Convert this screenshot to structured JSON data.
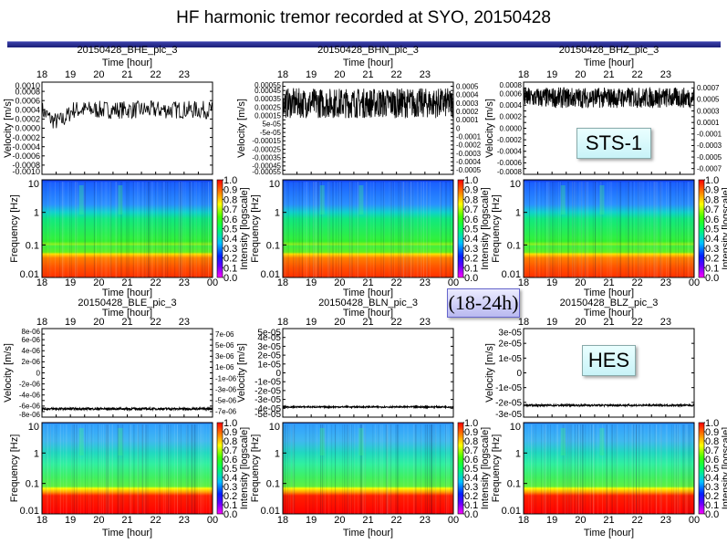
{
  "title": "HF harmonic tremor recorded at SYO, 20150428",
  "annotations": {
    "sts": "STS-1",
    "hes": "HES",
    "range": "(18-24h)"
  },
  "colors": {
    "bar": "#23278a",
    "trace": "#000000"
  },
  "chart_data": [
    {
      "type": "line+heatmap",
      "title": "20150428_BHE_pic_3",
      "xlabel": "Time [hour]",
      "ylabel": "Velocity [m/s]",
      "xticks_top": [
        "18",
        "19",
        "20",
        "21",
        "22",
        "23"
      ],
      "xticks_bottom": [
        "18",
        "19",
        "20",
        "21",
        "22",
        "23",
        "00"
      ],
      "yticks": [
        "0.0010",
        "0.0008",
        "0.0006",
        "0.0004",
        "0.0002",
        "0.0000",
        "-0.0002",
        "-0.0004",
        "-0.0006",
        "-0.0008",
        "-0.0010"
      ],
      "ylim": [
        -0.001,
        0.001
      ],
      "trace_mean": 0.0004,
      "trace_spread": 0.00015,
      "spec_ylabel": "Frequency [Hz]",
      "spec_yticks": [
        "10",
        "1",
        "0.1",
        "0.01"
      ],
      "cbar_label": "Intensity [logscale]",
      "cbar_ticks": [
        "1.0",
        "0.9",
        "0.8",
        "0.7",
        "0.6",
        "0.5",
        "0.4",
        "0.3",
        "0.2",
        "0.1",
        "0.0"
      ]
    },
    {
      "type": "line+heatmap",
      "title": "20150428_BHN_pic_3",
      "xlabel": "Time [hour]",
      "ylabel": "Velocity [m/s]",
      "xticks_top": [
        "18",
        "19",
        "20",
        "21",
        "22",
        "23"
      ],
      "xticks_bottom": [
        "18",
        "19",
        "20",
        "21",
        "22",
        "23",
        "00"
      ],
      "yticks": [
        "0.00055",
        "0.0005",
        "0.00045",
        "0.0004",
        "0.00035",
        "0.0003",
        "0.00025",
        "0.0002",
        "0.00015",
        "0.0001",
        "5e-05",
        "0",
        "-5e-05",
        "-0.0001",
        "-0.00015",
        "-0.0002",
        "-0.00025",
        "-0.0003",
        "-0.00035",
        "-0.0004",
        "-0.00045",
        "-0.0005",
        "-0.00055"
      ],
      "ylim": [
        -0.00055,
        0.00055
      ],
      "trace_mean": 0.0003,
      "trace_spread": 9e-05,
      "spec_ylabel": "Frequency [Hz]",
      "spec_yticks": [
        "10",
        "1",
        "0.1",
        "0.01"
      ],
      "cbar_label": "Intensity [logscale]",
      "cbar_ticks": [
        "1.0",
        "0.9",
        "0.8",
        "0.7",
        "0.6",
        "0.5",
        "0.4",
        "0.3",
        "0.2",
        "0.1",
        "0.0"
      ]
    },
    {
      "type": "line+heatmap",
      "title": "20150428_BHZ_pic_3",
      "xlabel": "Time [hour]",
      "ylabel": "Velocity [m/s]",
      "xticks_top": [
        "18",
        "19",
        "20",
        "21",
        "22",
        "23"
      ],
      "xticks_bottom": [
        "18",
        "19",
        "20",
        "21",
        "22",
        "23",
        "00"
      ],
      "yticks": [
        "0.0008",
        "0.0007",
        "0.0006",
        "0.0005",
        "0.0004",
        "0.0003",
        "0.0002",
        "0.0001",
        "0.0000",
        "-0.0001",
        "-0.0002",
        "-0.0003",
        "-0.0004",
        "-0.0005",
        "-0.0006",
        "-0.0007",
        "-0.0008"
      ],
      "ylim": [
        -0.0008,
        0.0008
      ],
      "trace_mean": 0.00053,
      "trace_spread": 9e-05,
      "spec_ylabel": "Frequency [Hz]",
      "spec_yticks": [
        "10",
        "1",
        "0.1",
        "0.01"
      ],
      "cbar_label": "Intensity [logscale]",
      "cbar_ticks": [
        "1.0",
        "0.9",
        "0.8",
        "0.7",
        "0.6",
        "0.5",
        "0.4",
        "0.3",
        "0.2",
        "0.1",
        "0.0"
      ]
    },
    {
      "type": "line+heatmap",
      "title": "20150428_BLE_pic_3",
      "xlabel": "Time [hour]",
      "ylabel": "Velocity [m/s]",
      "xticks_top": [
        "18",
        "19",
        "20",
        "21",
        "22",
        "23"
      ],
      "xticks_bottom": [
        "18",
        "19",
        "20",
        "21",
        "22",
        "23",
        "00"
      ],
      "yticks": [
        "8e-06",
        "7e-06",
        "6e-06",
        "5e-06",
        "4e-06",
        "3e-06",
        "2e-06",
        "1e-06",
        "0",
        "-1e-06",
        "-2e-06",
        "-3e-06",
        "-4e-06",
        "-5e-06",
        "-6e-06",
        "-7e-06",
        "-8e-06"
      ],
      "ylim": [
        -8e-06,
        8e-06
      ],
      "trace_mean": -6.5e-06,
      "trace_spread": 1e-07,
      "spec_ylabel": "Frequency [Hz]",
      "spec_yticks": [
        "10",
        "1",
        "0.1",
        "0.01"
      ],
      "cbar_label": "Intensity [logscale]",
      "cbar_ticks": [
        "1.0",
        "0.9",
        "0.8",
        "0.7",
        "0.6",
        "0.5",
        "0.4",
        "0.3",
        "0.2",
        "0.1",
        "0.0"
      ]
    },
    {
      "type": "line+heatmap",
      "title": "20150428_BLN_pic_3",
      "xlabel": "Time [hour]",
      "ylabel": "Velocity [m/s]",
      "xticks_top": [
        "18",
        "19",
        "20",
        "21",
        "22",
        "23"
      ],
      "xticks_bottom": [
        "18",
        "19",
        "20",
        "21",
        "22",
        "23",
        "00"
      ],
      "yticks": [
        "5e-05",
        "4e-05",
        "3e-05",
        "2e-05",
        "1e-05",
        "0",
        "-1e-05",
        "-2e-05",
        "-3e-05",
        "-4e-05",
        "-5e-05"
      ],
      "ylim": [
        -5e-05,
        5e-05
      ],
      "trace_mean": -3.85e-05,
      "trace_spread": 4e-07,
      "spec_ylabel": "Frequency [Hz]",
      "spec_yticks": [
        "10",
        "1",
        "0.1",
        "0.01"
      ],
      "cbar_label": "Intensity [logscale]",
      "cbar_ticks": [
        "1.0",
        "0.9",
        "0.8",
        "0.7",
        "0.6",
        "0.5",
        "0.4",
        "0.3",
        "0.2",
        "0.1",
        "0.0"
      ]
    },
    {
      "type": "line+heatmap",
      "title": "20150428_BLZ_pic_3",
      "xlabel": "Time [hour]",
      "ylabel": "Velocity [m/s]",
      "xticks_top": [
        "18",
        "19",
        "20",
        "21",
        "22",
        "23"
      ],
      "xticks_bottom": [
        "18",
        "19",
        "20",
        "21",
        "22",
        "23",
        "00"
      ],
      "yticks": [
        "3e-05",
        "2e-05",
        "1e-05",
        "0",
        "-1e-05",
        "-2e-05",
        "-3e-05"
      ],
      "ylim": [
        -3e-05,
        3e-05
      ],
      "trace_mean": -2.2e-05,
      "trace_spread": 3e-07,
      "spec_ylabel": "Frequency [Hz]",
      "spec_yticks": [
        "10",
        "1",
        "0.1",
        "0.01"
      ],
      "cbar_label": "Intensity [logscale]",
      "cbar_ticks": [
        "1.0",
        "0.9",
        "0.8",
        "0.7",
        "0.6",
        "0.5",
        "0.4",
        "0.3",
        "0.2",
        "0.1",
        "0.0"
      ]
    }
  ]
}
